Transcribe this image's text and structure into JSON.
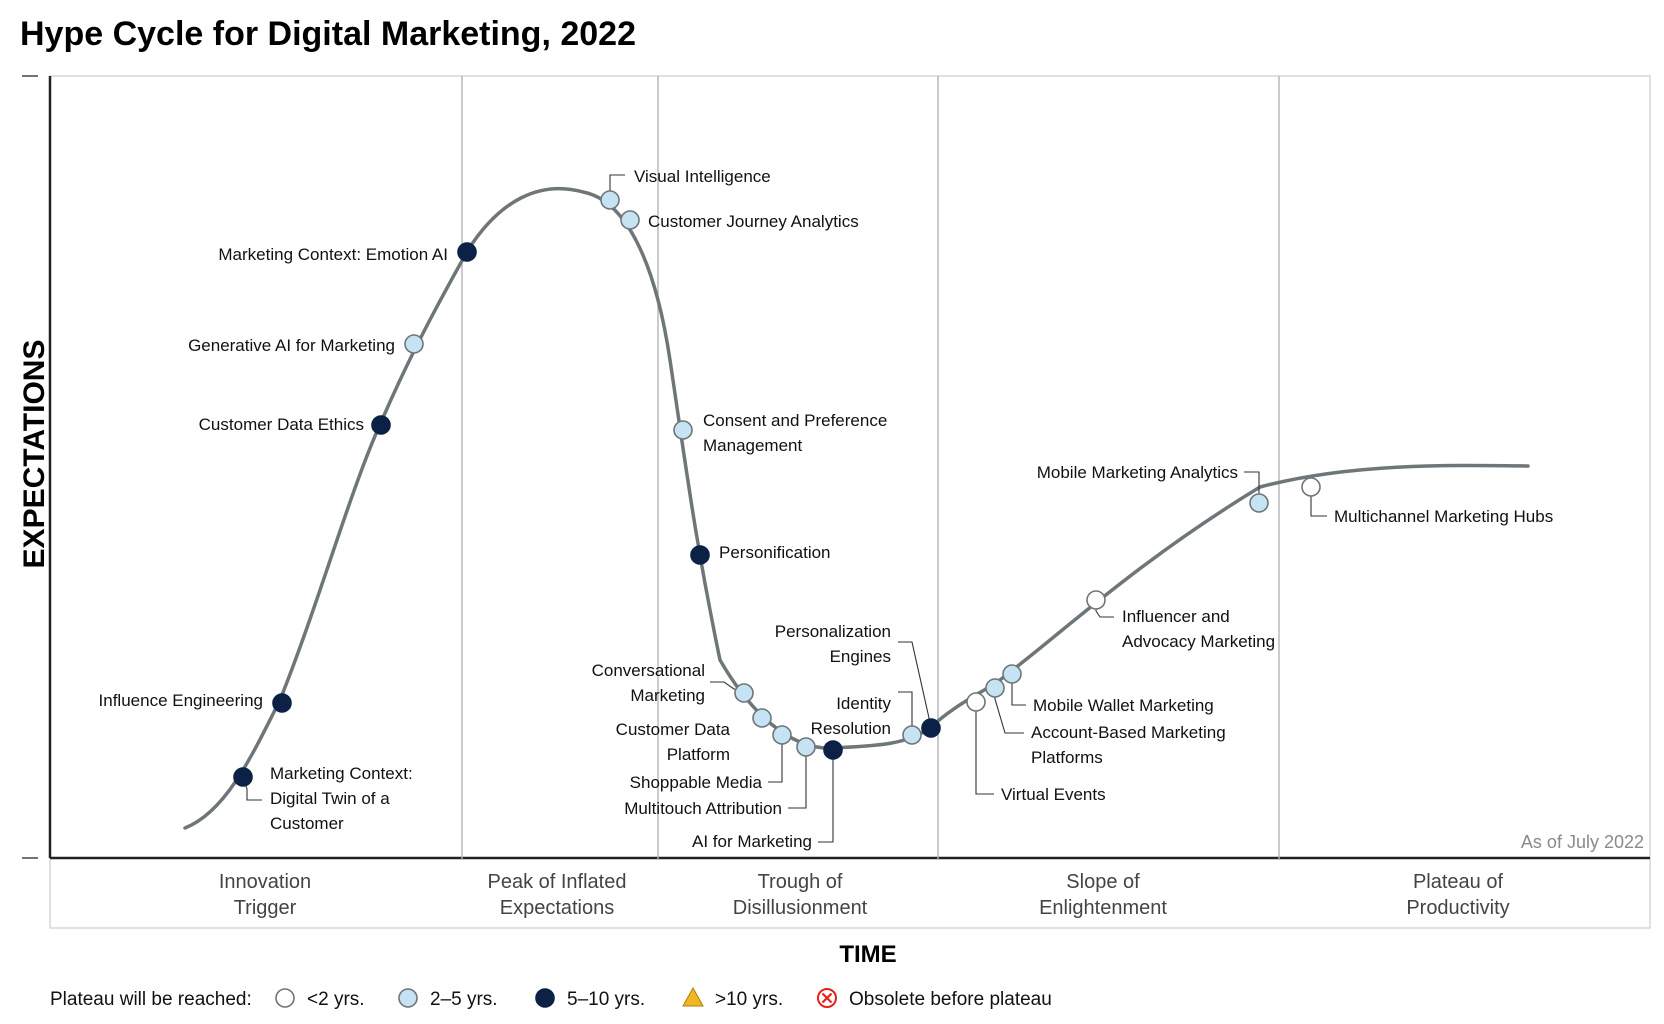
{
  "colors": {
    "lt2": "#ffffff",
    "2to5": "#c6e3f3",
    "5to10": "#0b2146",
    "gt10": "#f0b624",
    "obsolete": "#e2231a",
    "curve": "#6e7679",
    "grid": "#b5b5b5"
  },
  "chart_data": {
    "type": "line",
    "title": "Hype Cycle for Digital Marketing, 2022",
    "xlabel": "TIME",
    "ylabel": "EXPECTATIONS",
    "note": "As of July 2022",
    "phases": [
      [
        "Innovation",
        "Trigger"
      ],
      [
        "Peak of Inflated",
        "Expectations"
      ],
      [
        "Trough of",
        "Disillusionment"
      ],
      [
        "Slope of",
        "Enlightenment"
      ],
      [
        "Plateau of",
        "Productivity"
      ]
    ],
    "legend": {
      "title": "Plateau will be reached:",
      "items": [
        {
          "key": "lt2",
          "label": "<2 yrs.",
          "shape": "circle"
        },
        {
          "key": "2to5",
          "label": "2–5 yrs.",
          "shape": "circle"
        },
        {
          "key": "5to10",
          "label": "5–10 yrs.",
          "shape": "circle"
        },
        {
          "key": "gt10",
          "label": ">10 yrs.",
          "shape": "triangle"
        },
        {
          "key": "obsolete",
          "label": "Obsolete before plateau",
          "shape": "obsolete"
        }
      ]
    },
    "technologies": [
      {
        "name": [
          "Marketing Context:",
          "Digital Twin of a",
          "Customer"
        ],
        "class": "5to10"
      },
      {
        "name": [
          "Influence Engineering"
        ],
        "class": "5to10"
      },
      {
        "name": [
          "Customer Data Ethics"
        ],
        "class": "5to10"
      },
      {
        "name": [
          "Generative AI for Marketing"
        ],
        "class": "2to5"
      },
      {
        "name": [
          "Marketing Context: Emotion AI"
        ],
        "class": "5to10"
      },
      {
        "name": [
          "Visual Intelligence"
        ],
        "class": "2to5"
      },
      {
        "name": [
          "Customer Journey Analytics"
        ],
        "class": "2to5"
      },
      {
        "name": [
          "Consent and Preference",
          "Management"
        ],
        "class": "2to5"
      },
      {
        "name": [
          "Personification"
        ],
        "class": "5to10"
      },
      {
        "name": [
          "Conversational",
          "Marketing"
        ],
        "class": "2to5"
      },
      {
        "name": [
          "Customer Data",
          "Platform"
        ],
        "class": "2to5"
      },
      {
        "name": [
          "Shoppable Media"
        ],
        "class": "2to5"
      },
      {
        "name": [
          "Multitouch Attribution"
        ],
        "class": "2to5"
      },
      {
        "name": [
          "AI for Marketing"
        ],
        "class": "5to10"
      },
      {
        "name": [
          "Identity",
          "Resolution"
        ],
        "class": "2to5"
      },
      {
        "name": [
          "Personalization",
          "Engines"
        ],
        "class": "5to10"
      },
      {
        "name": [
          "Virtual Events"
        ],
        "class": "lt2"
      },
      {
        "name": [
          "Account-Based Marketing",
          "Platforms"
        ],
        "class": "2to5"
      },
      {
        "name": [
          "Mobile Wallet Marketing"
        ],
        "class": "2to5"
      },
      {
        "name": [
          "Influencer and",
          "Advocacy Marketing"
        ],
        "class": "lt2"
      },
      {
        "name": [
          "Mobile Marketing Analytics"
        ],
        "class": "2to5"
      },
      {
        "name": [
          "Multichannel Marketing Hubs"
        ],
        "class": "lt2"
      }
    ]
  }
}
